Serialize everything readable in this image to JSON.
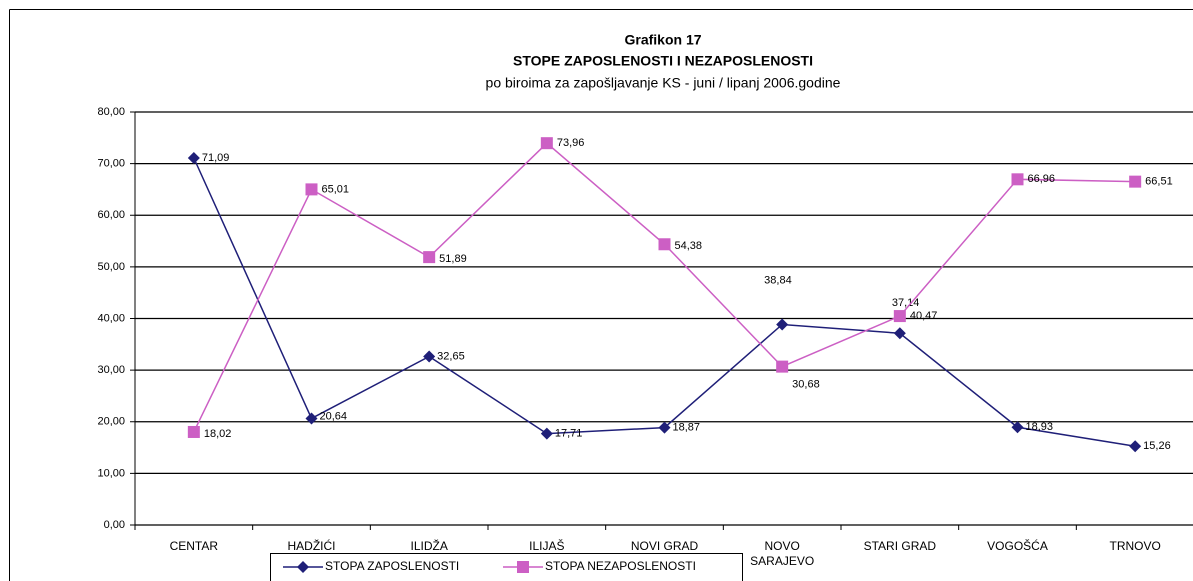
{
  "chart_data": {
    "type": "line",
    "title": "Grafikon 17",
    "subtitle": "STOPE ZAPOSLENOSTI I NEZAPOSLENOSTI",
    "caption": "po biroima za zapošljavanje KS - juni / lipanj 2006.godine",
    "categories": [
      "CENTAR",
      "HADŽIĆI",
      "ILIDŽA",
      "ILIJAŠ",
      "NOVI GRAD",
      "NOVO SARAJEVO",
      "STARI GRAD",
      "VOGOŠĆA",
      "TRNOVO"
    ],
    "series": [
      {
        "name": "STOPA ZAPOSLENOSTI",
        "color": "#1f1f78",
        "marker": "diamond",
        "values": [
          71.09,
          20.64,
          32.65,
          17.71,
          18.87,
          38.84,
          37.14,
          18.93,
          15.26
        ],
        "value_labels": [
          "71,09",
          "20,64",
          "32,65",
          "17,71",
          "18,87",
          "38,84",
          "37,14",
          "18,93",
          "15,26"
        ]
      },
      {
        "name": "STOPA NEZAPOSLENOSTI",
        "color": "#cc5fc4",
        "marker": "square",
        "values": [
          18.02,
          65.01,
          51.89,
          73.96,
          54.38,
          30.68,
          40.47,
          66.96,
          66.51
        ],
        "value_labels": [
          "18,02",
          "65,01",
          "51,89",
          "73,96",
          "54,38",
          "30,68",
          "40,47",
          "66,96",
          "66,51"
        ]
      }
    ],
    "ylim": [
      0,
      80
    ],
    "yticks": [
      {
        "value": 0,
        "label": "0,00"
      },
      {
        "value": 10,
        "label": "10,00"
      },
      {
        "value": 20,
        "label": "20,00"
      },
      {
        "value": 30,
        "label": "30,00"
      },
      {
        "value": 40,
        "label": "40,00"
      },
      {
        "value": 50,
        "label": "50,00"
      },
      {
        "value": 60,
        "label": "60,00"
      },
      {
        "value": 70,
        "label": "70,00"
      },
      {
        "value": 80,
        "label": "80,00"
      }
    ],
    "grid": true
  }
}
